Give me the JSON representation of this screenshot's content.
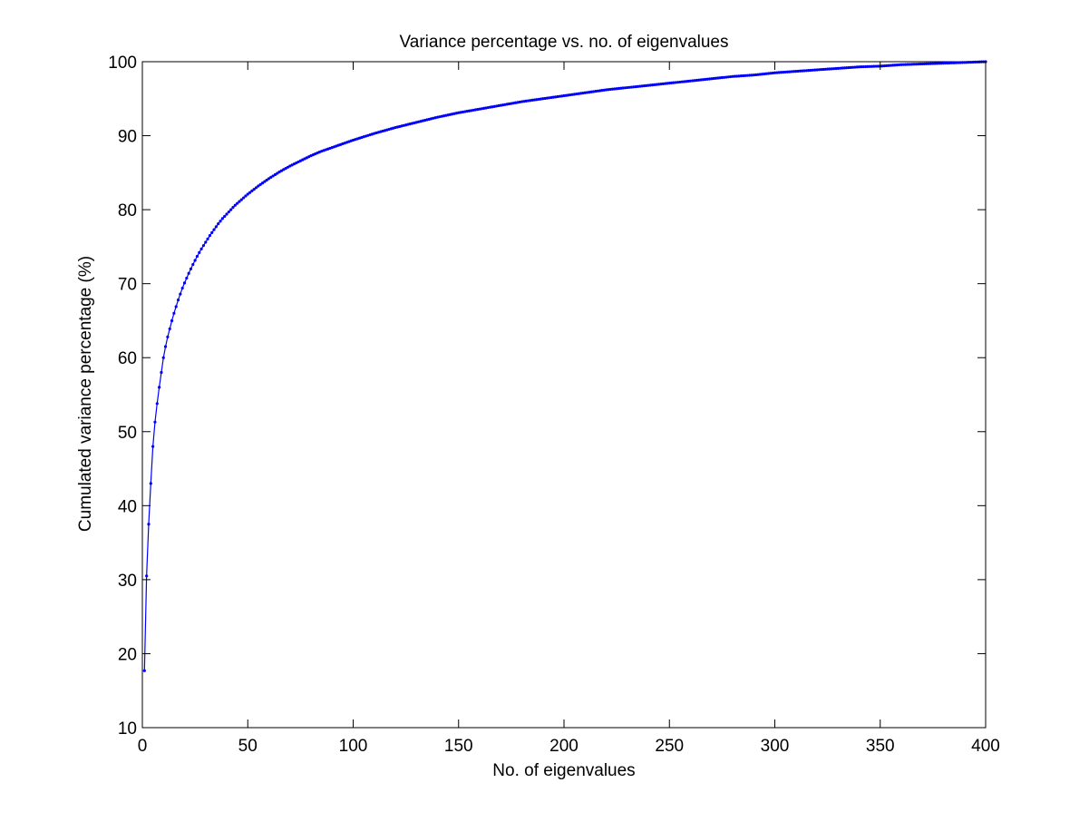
{
  "chart_data": {
    "type": "line",
    "title": "Variance percentage vs. no. of eigenvalues",
    "xlabel": "No. of eigenvalues",
    "ylabel": "Cumulated variance percentage (%)",
    "xlim": [
      0,
      400
    ],
    "ylim": [
      10,
      100
    ],
    "xticks": [
      0,
      50,
      100,
      150,
      200,
      250,
      300,
      350,
      400
    ],
    "yticks": [
      10,
      20,
      30,
      40,
      50,
      60,
      70,
      80,
      90,
      100
    ],
    "grid": false,
    "legend": "none",
    "marker": "dot",
    "series_color": "#0000ff",
    "series": [
      {
        "x": [
          1,
          2,
          3,
          4,
          5,
          6,
          7,
          8,
          9,
          10,
          11,
          12,
          13,
          14,
          15,
          16,
          17,
          18,
          19,
          20,
          22,
          24,
          26,
          28,
          30,
          32,
          34,
          36,
          38,
          40,
          42,
          44,
          46,
          48,
          50,
          55,
          60,
          65,
          70,
          75,
          80,
          85,
          90,
          95,
          100,
          110,
          120,
          130,
          140,
          150,
          160,
          170,
          180,
          190,
          200,
          210,
          220,
          230,
          240,
          250,
          260,
          270,
          280,
          290,
          300,
          310,
          320,
          330,
          340,
          350,
          360,
          370,
          380,
          390,
          400
        ],
        "values": [
          17.7,
          30.5,
          37.5,
          43.0,
          48.0,
          51.3,
          53.8,
          56.0,
          58.0,
          60.0,
          61.5,
          62.8,
          63.9,
          65.0,
          66.0,
          66.9,
          67.8,
          68.6,
          69.4,
          70.1,
          71.4,
          72.6,
          73.7,
          74.7,
          75.6,
          76.5,
          77.3,
          78.1,
          78.8,
          79.4,
          80.0,
          80.6,
          81.1,
          81.6,
          82.1,
          83.2,
          84.2,
          85.1,
          85.9,
          86.6,
          87.3,
          87.9,
          88.4,
          88.9,
          89.4,
          90.3,
          91.1,
          91.8,
          92.5,
          93.1,
          93.6,
          94.1,
          94.6,
          95.0,
          95.4,
          95.8,
          96.2,
          96.5,
          96.8,
          97.1,
          97.4,
          97.7,
          98.0,
          98.2,
          98.5,
          98.7,
          98.9,
          99.1,
          99.3,
          99.4,
          99.6,
          99.7,
          99.8,
          99.9,
          100.0
        ]
      }
    ]
  }
}
